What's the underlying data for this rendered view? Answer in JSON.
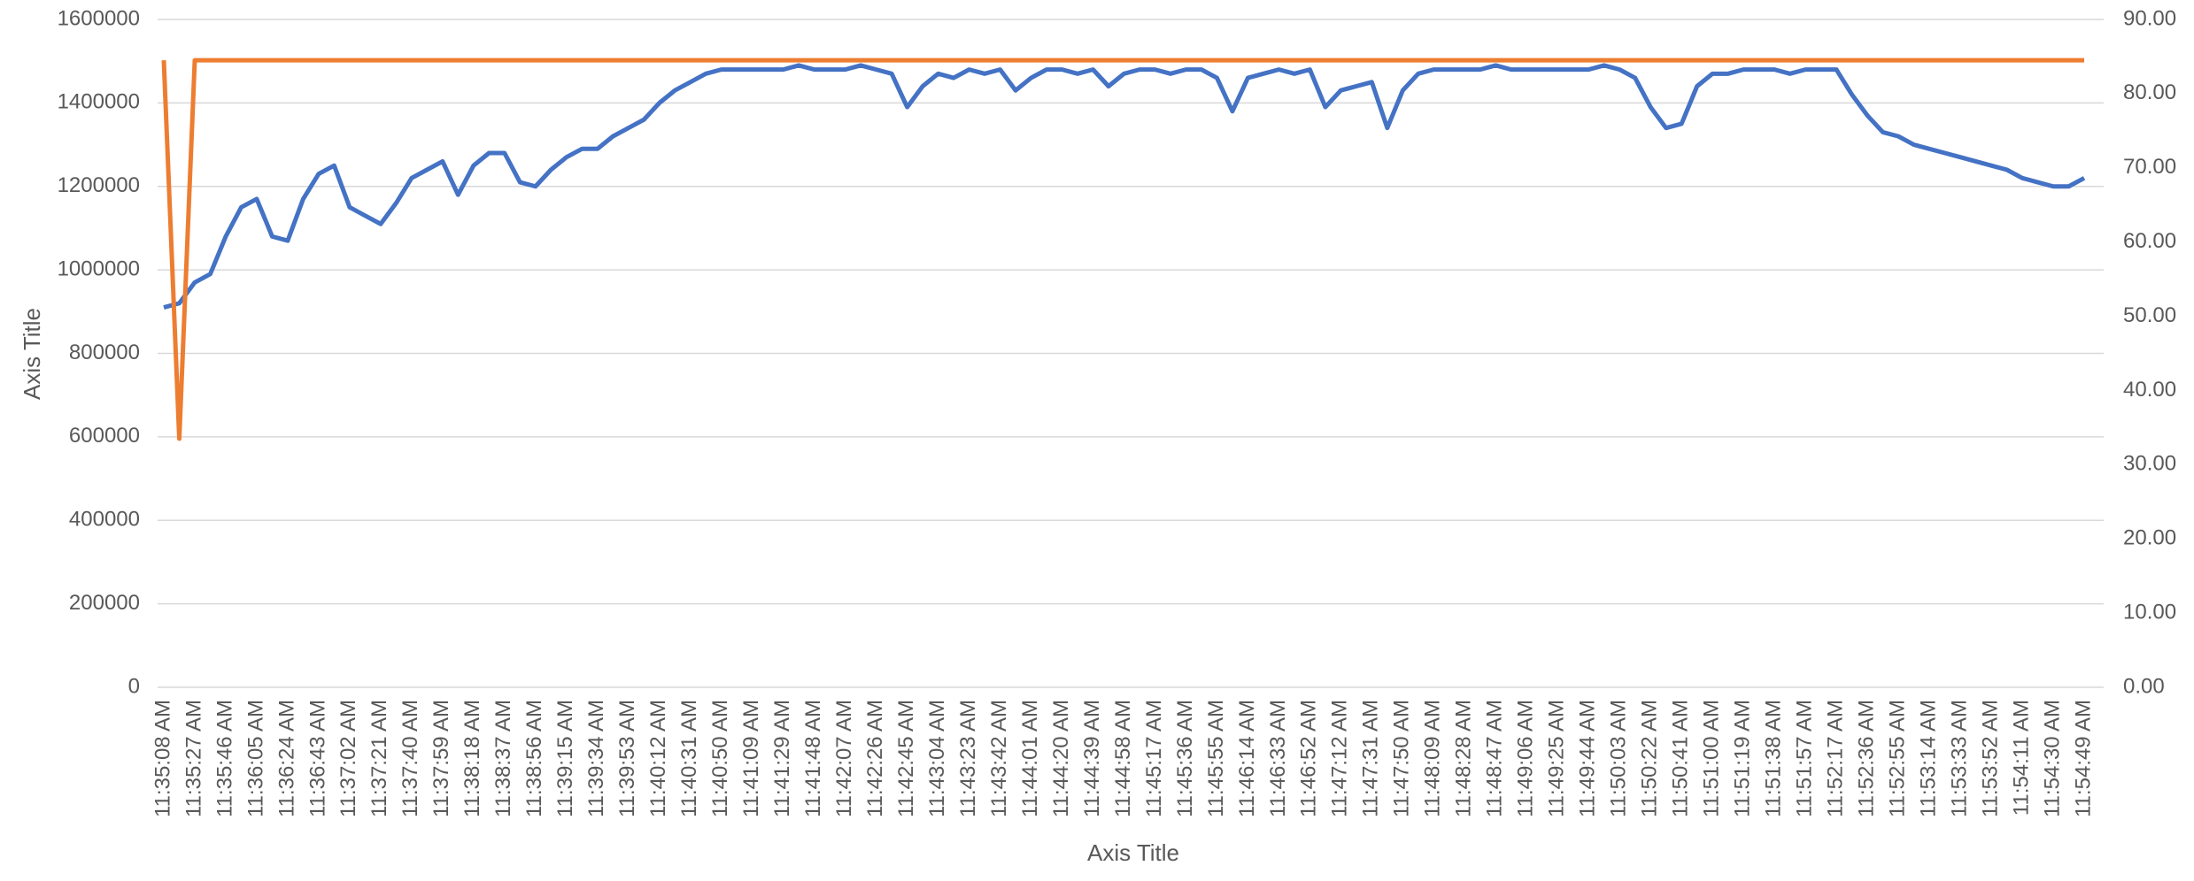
{
  "chart_data": {
    "type": "line",
    "y_axis_title": "Axis Title",
    "x_axis_title": "Axis Title",
    "categories": [
      "11:35:08 AM",
      null,
      "11:35:27 AM",
      null,
      "11:35:46 AM",
      null,
      "11:36:05 AM",
      null,
      "11:36:24 AM",
      null,
      "11:36:43 AM",
      null,
      "11:37:02 AM",
      null,
      "11:37:21 AM",
      null,
      "11:37:40 AM",
      null,
      "11:37:59 AM",
      null,
      "11:38:18 AM",
      null,
      "11:38:37 AM",
      null,
      "11:38:56 AM",
      null,
      "11:39:15 AM",
      null,
      "11:39:34 AM",
      null,
      "11:39:53 AM",
      null,
      "11:40:12 AM",
      null,
      "11:40:31 AM",
      null,
      "11:40:50 AM",
      null,
      "11:41:09 AM",
      null,
      "11:41:29 AM",
      null,
      "11:41:48 AM",
      null,
      "11:42:07 AM",
      null,
      "11:42:26 AM",
      null,
      "11:42:45 AM",
      null,
      "11:43:04 AM",
      null,
      "11:43:23 AM",
      null,
      "11:43:42 AM",
      null,
      "11:44:01 AM",
      null,
      "11:44:20 AM",
      null,
      "11:44:39 AM",
      null,
      "11:44:58 AM",
      null,
      "11:45:17 AM",
      null,
      "11:45:36 AM",
      null,
      "11:45:55 AM",
      null,
      "11:46:14 AM",
      null,
      "11:46:33 AM",
      null,
      "11:46:52 AM",
      null,
      "11:47:12 AM",
      null,
      "11:47:31 AM",
      null,
      "11:47:50 AM",
      null,
      "11:48:09 AM",
      null,
      "11:48:28 AM",
      null,
      "11:48:47 AM",
      null,
      "11:49:06 AM",
      null,
      "11:49:25 AM",
      null,
      "11:49:44 AM",
      null,
      "11:50:03 AM",
      null,
      "11:50:22 AM",
      null,
      "11:50:41 AM",
      null,
      "11:51:00 AM",
      null,
      "11:51:19 AM",
      null,
      "11:51:38 AM",
      null,
      "11:51:57 AM",
      null,
      "11:52:17 AM",
      null,
      "11:52:36 AM",
      null,
      "11:52:55 AM",
      null,
      "11:53:14 AM",
      null,
      "11:53:33 AM",
      null,
      "11:53:52 AM",
      null,
      "11:54:11 AM",
      null,
      "11:54:30 AM",
      null,
      "11:54:49 AM"
    ],
    "series": [
      {
        "color": "#4472c4",
        "axis": "y",
        "values": [
          910000,
          920000,
          970000,
          990000,
          1080000,
          1150000,
          1170000,
          1080000,
          1070000,
          1170000,
          1230000,
          1250000,
          1150000,
          1130000,
          1110000,
          1160000,
          1220000,
          1240000,
          1260000,
          1180000,
          1250000,
          1280000,
          1280000,
          1210000,
          1200000,
          1240000,
          1270000,
          1290000,
          1290000,
          1320000,
          1340000,
          1360000,
          1400000,
          1430000,
          1450000,
          1470000,
          1480000,
          1480000,
          1480000,
          1480000,
          1480000,
          1490000,
          1480000,
          1480000,
          1480000,
          1490000,
          1480000,
          1470000,
          1390000,
          1440000,
          1470000,
          1460000,
          1480000,
          1470000,
          1480000,
          1430000,
          1460000,
          1480000,
          1480000,
          1470000,
          1480000,
          1440000,
          1470000,
          1480000,
          1480000,
          1470000,
          1480000,
          1480000,
          1460000,
          1380000,
          1460000,
          1470000,
          1480000,
          1470000,
          1480000,
          1390000,
          1430000,
          1440000,
          1450000,
          1340000,
          1430000,
          1470000,
          1480000,
          1480000,
          1480000,
          1480000,
          1490000,
          1480000,
          1480000,
          1480000,
          1480000,
          1480000,
          1480000,
          1490000,
          1480000,
          1460000,
          1390000,
          1340000,
          1350000,
          1440000,
          1470000,
          1470000,
          1480000,
          1480000,
          1480000,
          1470000,
          1480000,
          1480000,
          1480000,
          1420000,
          1370000,
          1330000,
          1320000,
          1300000,
          1290000,
          1280000,
          1270000,
          1260000,
          1250000,
          1240000,
          1220000,
          1210000,
          1200000,
          1200000,
          1220000
        ]
      },
      {
        "color": "#ed7d31",
        "axis": "y2",
        "values": [
          84.5,
          33.5,
          84.5,
          84.5,
          84.5,
          84.5,
          84.5,
          84.5,
          84.5,
          84.5,
          84.5,
          84.5,
          84.5,
          84.5,
          84.5,
          84.5,
          84.5,
          84.5,
          84.5,
          84.5,
          84.5,
          84.5,
          84.5,
          84.5,
          84.5,
          84.5,
          84.5,
          84.5,
          84.5,
          84.5,
          84.5,
          84.5,
          84.5,
          84.5,
          84.5,
          84.5,
          84.5,
          84.5,
          84.5,
          84.5,
          84.5,
          84.5,
          84.5,
          84.5,
          84.5,
          84.5,
          84.5,
          84.5,
          84.5,
          84.5,
          84.5,
          84.5,
          84.5,
          84.5,
          84.5,
          84.5,
          84.5,
          84.5,
          84.5,
          84.5,
          84.5,
          84.5,
          84.5,
          84.5,
          84.5,
          84.5,
          84.5,
          84.5,
          84.5,
          84.5,
          84.5,
          84.5,
          84.5,
          84.5,
          84.5,
          84.5,
          84.5,
          84.5,
          84.5,
          84.5,
          84.5,
          84.5,
          84.5,
          84.5,
          84.5,
          84.5,
          84.5,
          84.5,
          84.5,
          84.5,
          84.5,
          84.5,
          84.5,
          84.5,
          84.5,
          84.5,
          84.5,
          84.5,
          84.5,
          84.5,
          84.5,
          84.5,
          84.5,
          84.5,
          84.5,
          84.5,
          84.5,
          84.5,
          84.5,
          84.5,
          84.5,
          84.5,
          84.5,
          84.5,
          84.5,
          84.5,
          84.5,
          84.5,
          84.5,
          84.5,
          84.5,
          84.5,
          84.5,
          84.5,
          84.5
        ]
      }
    ],
    "ylim": [
      0,
      1600000
    ],
    "yticks": [
      0,
      200000,
      400000,
      600000,
      800000,
      1000000,
      1200000,
      1400000,
      1600000
    ],
    "y2lim": [
      0,
      90
    ],
    "y2ticks": [
      {
        "value": 0,
        "label": "0.00"
      },
      {
        "value": 10,
        "label": "10.00"
      },
      {
        "value": 20,
        "label": "20.00"
      },
      {
        "value": 30,
        "label": "30.00"
      },
      {
        "value": 40,
        "label": "40.00"
      },
      {
        "value": 50,
        "label": "50.00"
      },
      {
        "value": 60,
        "label": "60.00"
      },
      {
        "value": 70,
        "label": "70.00"
      },
      {
        "value": 80,
        "label": "80.00"
      },
      {
        "value": 90,
        "label": "90.00"
      }
    ],
    "grid": true
  }
}
